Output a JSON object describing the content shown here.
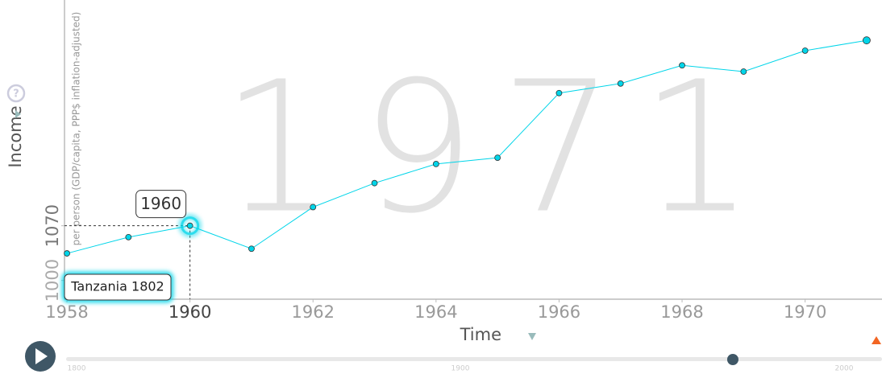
{
  "chart_data": {
    "type": "line",
    "watermark": "1971",
    "y_label": "Income",
    "y_sublabel": "per person (GDP/capita, PPP$ inflation-adjusted)",
    "x_label": "Time",
    "entity_label": "Tanzania 1802",
    "color": "#00d5e9",
    "x": [
      1958,
      1959,
      1960,
      1961,
      1962,
      1963,
      1964,
      1965,
      1966,
      1967,
      1968,
      1969,
      1970,
      1971
    ],
    "series": [
      {
        "name": "Tanzania 1802",
        "color": "#00d5e9",
        "values": [
          1034,
          1055,
          1070,
          1040,
          1095,
          1128,
          1155,
          1164,
          1261,
          1276,
          1305,
          1295,
          1329,
          1346
        ]
      }
    ],
    "xlim": [
      1957.96,
      1971.25
    ],
    "xticks": [
      1958,
      1960,
      1962,
      1964,
      1966,
      1968,
      1970
    ],
    "ylim": [
      977,
      1415
    ],
    "yticks": [
      1000,
      1070
    ],
    "ylog": true,
    "selected": {
      "x": 1960,
      "y": 1070
    },
    "slider": {
      "ticks": [
        1800,
        1900,
        2000
      ],
      "value": 1971
    }
  }
}
